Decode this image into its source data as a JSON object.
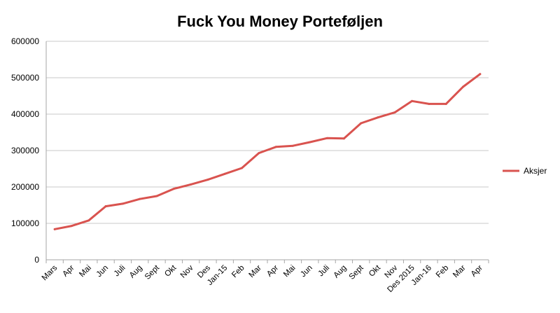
{
  "chart_data": {
    "type": "line",
    "title": "Fuck You Money Porteføljen",
    "xlabel": "",
    "ylabel": "",
    "ylim": [
      0,
      600000
    ],
    "yticks": [
      "0",
      "100000",
      "200000",
      "300000",
      "400000",
      "500000",
      "600000"
    ],
    "grid": true,
    "legend_position": "right",
    "categories": [
      "Mars",
      "Apr",
      "Mai",
      "Jun",
      "Juli",
      "Aug",
      "Sept",
      "Okt",
      "Nov",
      "Des",
      "Jan-15",
      "Feb",
      "Mar",
      "Apr",
      "Mai",
      "Jun",
      "Juli",
      "Aug",
      "Sept",
      "Okt",
      "Nov",
      "Des 2015",
      "Jan-16",
      "Feb",
      "Mar",
      "Apr"
    ],
    "series": [
      {
        "name": "Aksjer",
        "color": "#d9534f",
        "values": [
          84000,
          93000,
          108000,
          147000,
          154000,
          167000,
          175000,
          195000,
          207000,
          220000,
          236000,
          252000,
          293000,
          310000,
          313000,
          323000,
          334000,
          333000,
          375000,
          391000,
          405000,
          436000,
          428000,
          428000,
          475000,
          510000
        ]
      }
    ]
  }
}
